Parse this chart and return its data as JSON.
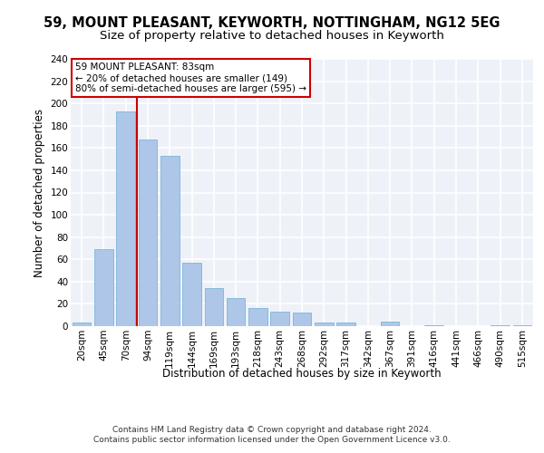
{
  "title1": "59, MOUNT PLEASANT, KEYWORTH, NOTTINGHAM, NG12 5EG",
  "title2": "Size of property relative to detached houses in Keyworth",
  "xlabel": "Distribution of detached houses by size in Keyworth",
  "ylabel": "Number of detached properties",
  "categories": [
    "20sqm",
    "45sqm",
    "70sqm",
    "94sqm",
    "119sqm",
    "144sqm",
    "169sqm",
    "193sqm",
    "218sqm",
    "243sqm",
    "268sqm",
    "292sqm",
    "317sqm",
    "342sqm",
    "367sqm",
    "391sqm",
    "416sqm",
    "441sqm",
    "466sqm",
    "490sqm",
    "515sqm"
  ],
  "values": [
    3,
    69,
    193,
    168,
    153,
    57,
    34,
    25,
    16,
    13,
    12,
    3,
    3,
    0,
    4,
    0,
    1,
    0,
    0,
    1,
    1
  ],
  "bar_color": "#aec6e8",
  "bar_edge_color": "#6aaed6",
  "vline_x": 2.5,
  "vline_color": "#cc0000",
  "annotation_text": "59 MOUNT PLEASANT: 83sqm\n← 20% of detached houses are smaller (149)\n80% of semi-detached houses are larger (595) →",
  "annotation_box_color": "#ffffff",
  "annotation_box_edge": "#cc0000",
  "footer": "Contains HM Land Registry data © Crown copyright and database right 2024.\nContains public sector information licensed under the Open Government Licence v3.0.",
  "ylim": [
    0,
    240
  ],
  "yticks": [
    0,
    20,
    40,
    60,
    80,
    100,
    120,
    140,
    160,
    180,
    200,
    220,
    240
  ],
  "bg_color": "#eef2f8",
  "grid_color": "#ffffff",
  "title_fontsize": 10.5,
  "subtitle_fontsize": 9.5,
  "axis_label_fontsize": 8.5,
  "tick_fontsize": 7.5,
  "footer_fontsize": 6.5,
  "annotation_fontsize": 7.5
}
